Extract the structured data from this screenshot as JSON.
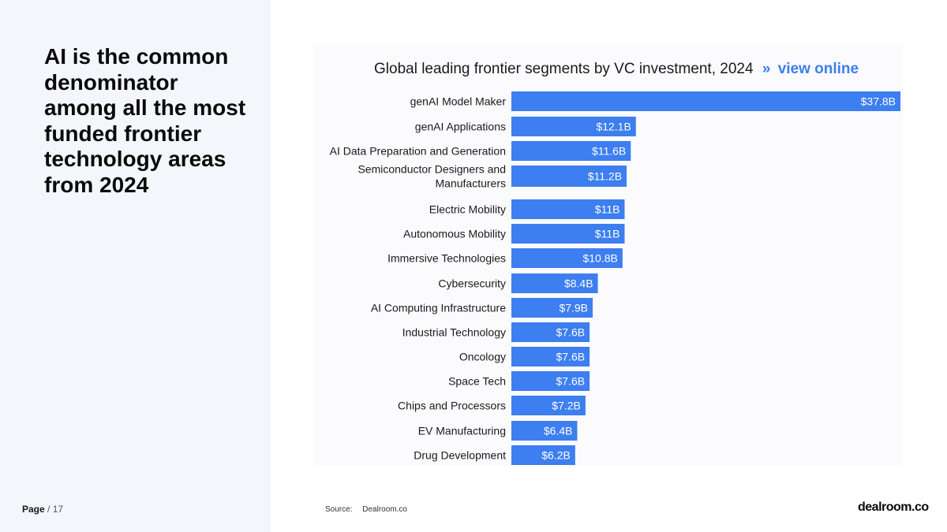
{
  "headline": "AI is the common denominator among all the most funded frontier technology areas from 2024",
  "page": {
    "label": "Page",
    "total": "/ 17"
  },
  "chart_title": {
    "text": "Global leading frontier segments by VC investment, 2024",
    "separator": "»",
    "link": "view online"
  },
  "source": {
    "label": "Source:",
    "value": "Dealroom.co"
  },
  "logo": "dealroom.co",
  "colors": {
    "bar": "#3d7ef0",
    "accent": "#3d7ef0",
    "panel": "#f5f6fb"
  },
  "chart_data": {
    "type": "bar",
    "orientation": "horizontal",
    "title": "Global leading frontier segments by VC investment, 2024",
    "unit": "$B",
    "categories": [
      "genAI Model Maker",
      "genAI Applications",
      "AI Data Preparation and Generation",
      "Semiconductor Designers and Manufacturers",
      "Electric Mobility",
      "Autonomous Mobility",
      "Immersive Technologies",
      "Cybersecurity",
      "AI Computing Infrastructure",
      "Industrial Technology",
      "Oncology",
      "Space Tech",
      "Chips and Processors",
      "EV Manufacturing",
      "Drug Development"
    ],
    "values": [
      37.8,
      12.1,
      11.6,
      11.2,
      11,
      11,
      10.8,
      8.4,
      7.9,
      7.6,
      7.6,
      7.6,
      7.2,
      6.4,
      6.2
    ],
    "data_labels": [
      "$37.8B",
      "$12.1B",
      "$11.6B",
      "$11.2B",
      "$11B",
      "$11B",
      "$10.8B",
      "$8.4B",
      "$7.9B",
      "$7.6B",
      "$7.6B",
      "$7.6B",
      "$7.2B",
      "$6.4B",
      "$6.2B"
    ],
    "xlim": [
      0,
      37.8
    ],
    "grid": false,
    "legend": "none"
  }
}
